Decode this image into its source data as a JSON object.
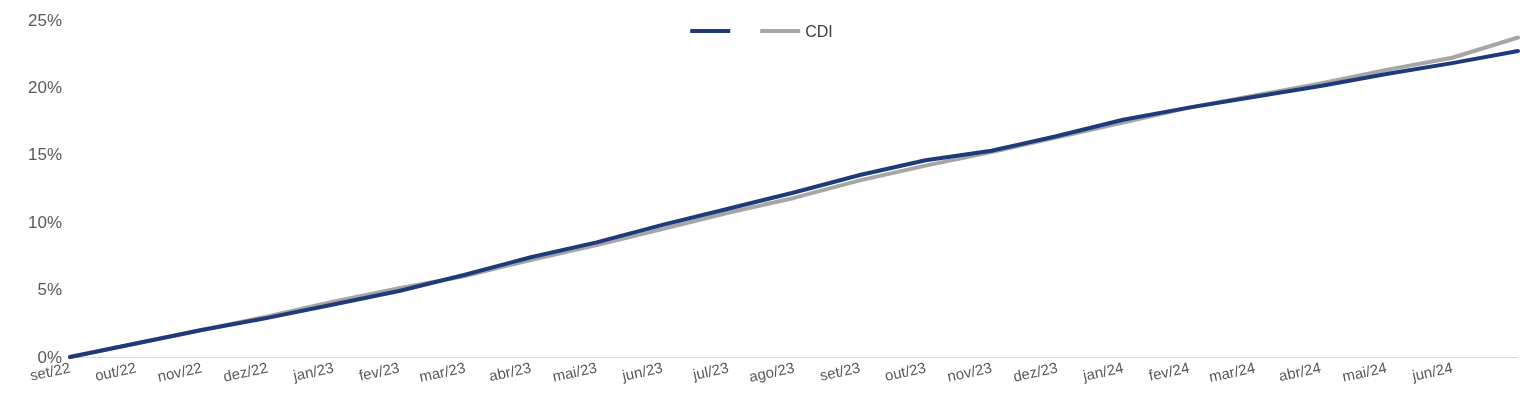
{
  "chart_data": {
    "type": "line",
    "categories": [
      "set/22",
      "out/22",
      "nov/22",
      "dez/22",
      "jan/23",
      "fev/23",
      "mar/23",
      "abr/23",
      "mai/23",
      "jun/23",
      "jul/23",
      "ago/23",
      "set/23",
      "out/23",
      "nov/23",
      "dez/23",
      "jan/24",
      "fev/24",
      "mar/24",
      "abr/24",
      "mai/24",
      "jun/24",
      null
    ],
    "series": [
      {
        "color": "#1f3a7a",
        "values": [
          0,
          1.0,
          2.0,
          2.9,
          3.9,
          4.9,
          6.1,
          7.4,
          8.5,
          9.8,
          11.0,
          12.2,
          13.5,
          14.6,
          15.3,
          16.4,
          17.6,
          18.5,
          19.3,
          20.1,
          21.0,
          21.8,
          22.7
        ]
      },
      {
        "name": "CDI",
        "color": "#a6a6a6",
        "values": [
          0,
          1.0,
          2.0,
          3.0,
          4.1,
          5.1,
          6.0,
          7.2,
          8.3,
          9.5,
          10.7,
          11.8,
          13.1,
          14.2,
          15.2,
          16.3,
          17.4,
          18.5,
          19.4,
          20.3,
          21.3,
          22.2,
          23.7
        ]
      }
    ],
    "ylim": [
      0,
      25
    ],
    "yticks": [
      {
        "value": 0,
        "label": "0%"
      },
      {
        "value": 5,
        "label": "5%"
      },
      {
        "value": 10,
        "label": "10%"
      },
      {
        "value": 15,
        "label": "15%"
      },
      {
        "value": 20,
        "label": "20%"
      },
      {
        "value": 25,
        "label": "25%"
      }
    ],
    "grid": false,
    "legend": "top",
    "marker": "none",
    "line_style": "solid"
  }
}
